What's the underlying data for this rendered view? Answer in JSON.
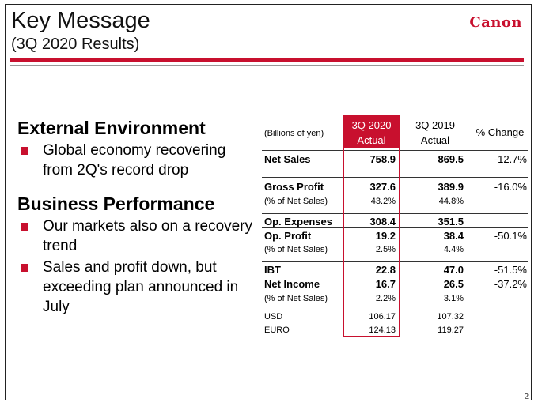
{
  "header": {
    "title": "Key Message",
    "subtitle": "(3Q 2020 Results)",
    "logo": "Canon"
  },
  "left": {
    "sections": [
      {
        "heading": "External Environment",
        "bullets": [
          "Global economy recovering from 2Q's record drop"
        ]
      },
      {
        "heading": "Business Performance",
        "bullets": [
          "Our markets also on a recovery trend",
          "Sales and profit down, but exceeding plan announced in July"
        ]
      }
    ]
  },
  "table": {
    "corner_label": "(Billions of yen)",
    "col1_header_l1": "3Q 2020",
    "col1_header_l2": "Actual",
    "col2_header_l1": "3Q 2019",
    "col2_header_l2": "Actual",
    "col3_header": "% Change",
    "rows": [
      {
        "label": "Net Sales",
        "c1": "758.9",
        "c2": "869.5",
        "c3": "-12.7%"
      },
      {
        "label": "Gross Profit",
        "c1": "327.6",
        "c2": "389.9",
        "c3": "-16.0%"
      },
      {
        "label": "(% of Net Sales)",
        "c1": "43.2%",
        "c2": "44.8%",
        "c3": ""
      },
      {
        "label": "Op. Expenses",
        "c1": "308.4",
        "c2": "351.5",
        "c3": ""
      },
      {
        "label": "Op. Profit",
        "c1": "19.2",
        "c2": "38.4",
        "c3": "-50.1%"
      },
      {
        "label": "(% of Net Sales)",
        "c1": "2.5%",
        "c2": "4.4%",
        "c3": ""
      },
      {
        "label": "IBT",
        "c1": "22.8",
        "c2": "47.0",
        "c3": "-51.5%"
      },
      {
        "label": "Net Income",
        "c1": "16.7",
        "c2": "26.5",
        "c3": "-37.2%"
      },
      {
        "label": "(% of Net Sales)",
        "c1": "2.2%",
        "c2": "3.1%",
        "c3": ""
      },
      {
        "label": "USD",
        "c1": "106.17",
        "c2": "107.32",
        "c3": ""
      },
      {
        "label": "EURO",
        "c1": "124.13",
        "c2": "119.27",
        "c3": ""
      }
    ]
  },
  "page_number": "2",
  "colors": {
    "accent": "#c8102e"
  }
}
